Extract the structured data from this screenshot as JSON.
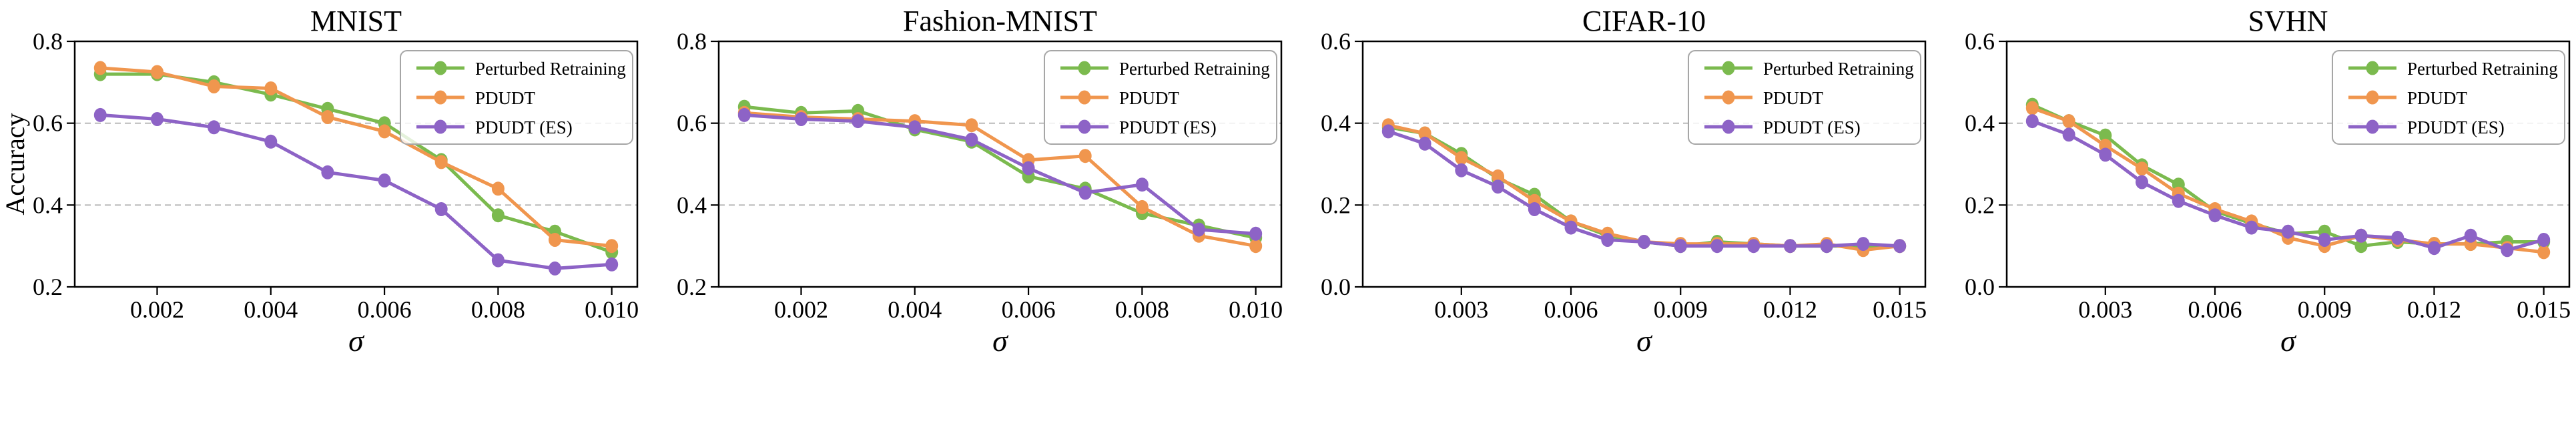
{
  "page": {
    "background": "#ffffff"
  },
  "palette": {
    "green": "#7bba4e",
    "orange": "#f0964e",
    "purple": "#8d63c6",
    "grid": "#b3b3b3",
    "axis": "#000000",
    "legend_border": "#a6a6a6",
    "legend_fill": "#ffffff"
  },
  "legend": {
    "position": "upper right",
    "entries": [
      {
        "label": "Perturbed Retraining",
        "color_key": "green"
      },
      {
        "label": "PDUDT",
        "color_key": "orange"
      },
      {
        "label": "PDUDT (ES)",
        "color_key": "purple"
      }
    ]
  },
  "chart_data": [
    {
      "type": "line",
      "title": "MNIST",
      "xlabel": "σ",
      "ylabel": "Accuracy",
      "ylim": [
        0.2,
        0.8
      ],
      "yticks": [
        0.2,
        0.4,
        0.6,
        0.8
      ],
      "ytick_labels": [
        "0.2",
        "0.4",
        "0.6",
        "0.8"
      ],
      "xticks": [
        0.002,
        0.004,
        0.006,
        0.008,
        0.01
      ],
      "xtick_labels": [
        "0.002",
        "0.004",
        "0.006",
        "0.008",
        "0.010"
      ],
      "grid": true,
      "legend_position": "upper right",
      "x": [
        0.001,
        0.002,
        0.003,
        0.004,
        0.005,
        0.006,
        0.007,
        0.008,
        0.009,
        0.01
      ],
      "series": [
        {
          "name": "Perturbed Retraining",
          "color_key": "green",
          "values": [
            0.72,
            0.72,
            0.7,
            0.67,
            0.635,
            0.6,
            0.51,
            0.375,
            0.335,
            0.285
          ]
        },
        {
          "name": "PDUDT",
          "color_key": "orange",
          "values": [
            0.735,
            0.725,
            0.69,
            0.685,
            0.615,
            0.58,
            0.505,
            0.44,
            0.315,
            0.3
          ]
        },
        {
          "name": "PDUDT (ES)",
          "color_key": "purple",
          "values": [
            0.62,
            0.61,
            0.59,
            0.555,
            0.48,
            0.46,
            0.39,
            0.265,
            0.245,
            0.255
          ]
        }
      ]
    },
    {
      "type": "line",
      "title": "Fashion-MNIST",
      "xlabel": "σ",
      "ylabel": "",
      "ylim": [
        0.2,
        0.8
      ],
      "yticks": [
        0.2,
        0.4,
        0.6,
        0.8
      ],
      "ytick_labels": [
        "0.2",
        "0.4",
        "0.6",
        "0.8"
      ],
      "xticks": [
        0.002,
        0.004,
        0.006,
        0.008,
        0.01
      ],
      "xtick_labels": [
        "0.002",
        "0.004",
        "0.006",
        "0.008",
        "0.010"
      ],
      "grid": true,
      "legend_position": "upper right",
      "x": [
        0.001,
        0.002,
        0.003,
        0.004,
        0.005,
        0.006,
        0.007,
        0.008,
        0.009,
        0.01
      ],
      "series": [
        {
          "name": "Perturbed Retraining",
          "color_key": "green",
          "values": [
            0.64,
            0.625,
            0.63,
            0.585,
            0.555,
            0.47,
            0.44,
            0.38,
            0.35,
            0.32
          ]
        },
        {
          "name": "PDUDT",
          "color_key": "orange",
          "values": [
            0.625,
            0.615,
            0.61,
            0.605,
            0.595,
            0.51,
            0.52,
            0.395,
            0.325,
            0.3
          ]
        },
        {
          "name": "PDUDT (ES)",
          "color_key": "purple",
          "values": [
            0.62,
            0.61,
            0.605,
            0.59,
            0.56,
            0.49,
            0.43,
            0.45,
            0.34,
            0.33
          ]
        }
      ]
    },
    {
      "type": "line",
      "title": "CIFAR-10",
      "xlabel": "σ",
      "ylabel": "",
      "ylim": [
        0.0,
        0.6
      ],
      "yticks": [
        0.0,
        0.2,
        0.4,
        0.6
      ],
      "ytick_labels": [
        "0.0",
        "0.2",
        "0.4",
        "0.6"
      ],
      "xticks": [
        0.003,
        0.006,
        0.009,
        0.012,
        0.015
      ],
      "xtick_labels": [
        "0.003",
        "0.006",
        "0.009",
        "0.012",
        "0.015"
      ],
      "grid": true,
      "legend_position": "upper right",
      "x": [
        0.001,
        0.002,
        0.003,
        0.004,
        0.005,
        0.006,
        0.007,
        0.008,
        0.009,
        0.01,
        0.011,
        0.012,
        0.013,
        0.014,
        0.015
      ],
      "series": [
        {
          "name": "Perturbed Retraining",
          "color_key": "green",
          "values": [
            0.39,
            0.375,
            0.325,
            0.265,
            0.225,
            0.16,
            0.125,
            0.11,
            0.1,
            0.11,
            0.105,
            0.1,
            0.1,
            0.1,
            0.1
          ]
        },
        {
          "name": "PDUDT",
          "color_key": "orange",
          "values": [
            0.395,
            0.375,
            0.315,
            0.27,
            0.21,
            0.16,
            0.13,
            0.11,
            0.105,
            0.105,
            0.105,
            0.1,
            0.105,
            0.09,
            0.1
          ]
        },
        {
          "name": "PDUDT (ES)",
          "color_key": "purple",
          "values": [
            0.38,
            0.35,
            0.285,
            0.245,
            0.19,
            0.145,
            0.115,
            0.11,
            0.1,
            0.1,
            0.1,
            0.1,
            0.1,
            0.105,
            0.1
          ]
        }
      ]
    },
    {
      "type": "line",
      "title": "SVHN",
      "xlabel": "σ",
      "ylabel": "",
      "ylim": [
        0.0,
        0.6
      ],
      "yticks": [
        0.0,
        0.2,
        0.4,
        0.6
      ],
      "ytick_labels": [
        "0.0",
        "0.2",
        "0.4",
        "0.6"
      ],
      "xticks": [
        0.003,
        0.006,
        0.009,
        0.012,
        0.015
      ],
      "xtick_labels": [
        "0.003",
        "0.006",
        "0.009",
        "0.012",
        "0.015"
      ],
      "grid": true,
      "legend_position": "upper right",
      "x": [
        0.001,
        0.002,
        0.003,
        0.004,
        0.005,
        0.006,
        0.007,
        0.008,
        0.009,
        0.01,
        0.011,
        0.012,
        0.013,
        0.014,
        0.015
      ],
      "series": [
        {
          "name": "Perturbed Retraining",
          "color_key": "green",
          "values": [
            0.445,
            0.405,
            0.37,
            0.297,
            0.25,
            0.185,
            0.155,
            0.13,
            0.135,
            0.1,
            0.11,
            0.105,
            0.105,
            0.11,
            0.11
          ]
        },
        {
          "name": "PDUDT",
          "color_key": "orange",
          "values": [
            0.437,
            0.405,
            0.345,
            0.289,
            0.228,
            0.19,
            0.16,
            0.12,
            0.1,
            0.125,
            0.115,
            0.105,
            0.105,
            0.095,
            0.085
          ]
        },
        {
          "name": "PDUDT (ES)",
          "color_key": "purple",
          "values": [
            0.405,
            0.372,
            0.323,
            0.256,
            0.21,
            0.175,
            0.145,
            0.135,
            0.115,
            0.125,
            0.12,
            0.095,
            0.125,
            0.09,
            0.115
          ]
        }
      ]
    }
  ]
}
